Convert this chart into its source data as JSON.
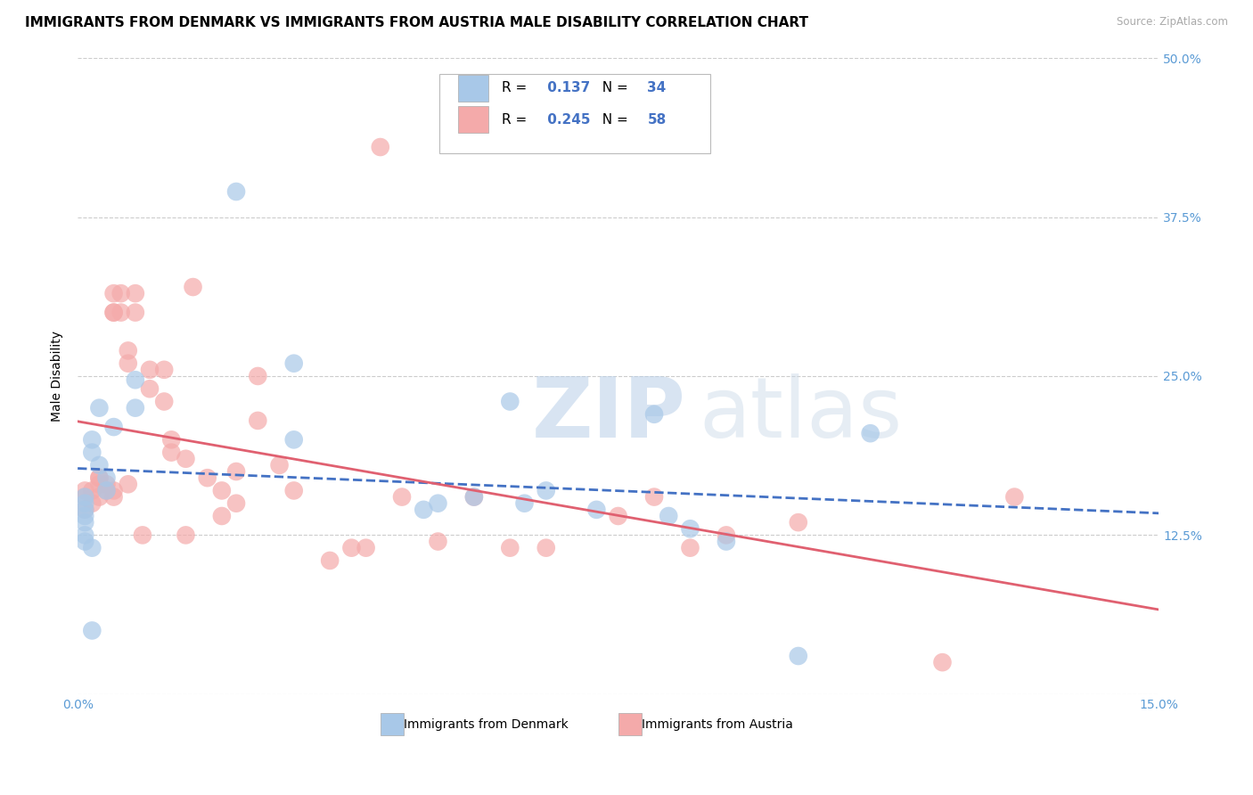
{
  "title": "IMMIGRANTS FROM DENMARK VS IMMIGRANTS FROM AUSTRIA MALE DISABILITY CORRELATION CHART",
  "source": "Source: ZipAtlas.com",
  "ylabel_label": "Male Disability",
  "x_min": 0.0,
  "x_max": 0.15,
  "y_min": 0.0,
  "y_max": 0.5,
  "x_tick_positions": [
    0.0,
    0.05,
    0.1,
    0.15
  ],
  "x_tick_labels": [
    "0.0%",
    "",
    "",
    "15.0%"
  ],
  "y_tick_positions": [
    0.0,
    0.125,
    0.25,
    0.375,
    0.5
  ],
  "y_tick_labels": [
    "",
    "12.5%",
    "25.0%",
    "37.5%",
    "50.0%"
  ],
  "denmark_color": "#a8c8e8",
  "austria_color": "#f4aaaa",
  "denmark_line_color": "#4472c4",
  "austria_line_color": "#e06070",
  "denmark_R": 0.137,
  "denmark_N": 34,
  "austria_R": 0.245,
  "austria_N": 58,
  "denmark_scatter_x": [
    0.022,
    0.008,
    0.008,
    0.003,
    0.005,
    0.002,
    0.002,
    0.003,
    0.004,
    0.004,
    0.001,
    0.001,
    0.001,
    0.001,
    0.001,
    0.001,
    0.001,
    0.002,
    0.06,
    0.03,
    0.055,
    0.065,
    0.048,
    0.03,
    0.08,
    0.072,
    0.082,
    0.085,
    0.09,
    0.062,
    0.05,
    0.1,
    0.11,
    0.002
  ],
  "denmark_scatter_y": [
    0.395,
    0.247,
    0.225,
    0.225,
    0.21,
    0.2,
    0.19,
    0.18,
    0.17,
    0.16,
    0.155,
    0.15,
    0.145,
    0.14,
    0.135,
    0.125,
    0.12,
    0.115,
    0.23,
    0.26,
    0.155,
    0.16,
    0.145,
    0.2,
    0.22,
    0.145,
    0.14,
    0.13,
    0.12,
    0.15,
    0.15,
    0.03,
    0.205,
    0.05
  ],
  "austria_scatter_x": [
    0.001,
    0.001,
    0.001,
    0.002,
    0.002,
    0.003,
    0.003,
    0.003,
    0.003,
    0.004,
    0.004,
    0.005,
    0.005,
    0.005,
    0.005,
    0.005,
    0.006,
    0.006,
    0.007,
    0.007,
    0.007,
    0.008,
    0.008,
    0.009,
    0.01,
    0.01,
    0.012,
    0.012,
    0.013,
    0.013,
    0.015,
    0.015,
    0.016,
    0.018,
    0.02,
    0.02,
    0.022,
    0.022,
    0.025,
    0.025,
    0.028,
    0.03,
    0.035,
    0.038,
    0.04,
    0.042,
    0.045,
    0.05,
    0.055,
    0.06,
    0.065,
    0.075,
    0.08,
    0.085,
    0.09,
    0.1,
    0.12,
    0.13
  ],
  "austria_scatter_y": [
    0.155,
    0.145,
    0.16,
    0.16,
    0.15,
    0.17,
    0.165,
    0.155,
    0.17,
    0.165,
    0.16,
    0.3,
    0.315,
    0.3,
    0.16,
    0.155,
    0.315,
    0.3,
    0.26,
    0.27,
    0.165,
    0.315,
    0.3,
    0.125,
    0.24,
    0.255,
    0.255,
    0.23,
    0.2,
    0.19,
    0.185,
    0.125,
    0.32,
    0.17,
    0.14,
    0.16,
    0.175,
    0.15,
    0.25,
    0.215,
    0.18,
    0.16,
    0.105,
    0.115,
    0.115,
    0.43,
    0.155,
    0.12,
    0.155,
    0.115,
    0.115,
    0.14,
    0.155,
    0.115,
    0.125,
    0.135,
    0.025,
    0.155
  ],
  "watermark_zip": "ZIP",
  "watermark_atlas": "atlas",
  "background_color": "#ffffff",
  "grid_color": "#cccccc",
  "tick_color": "#5b9bd5",
  "title_fontsize": 11,
  "axis_label_fontsize": 10,
  "tick_label_fontsize": 10,
  "legend_r_n_color": "#4472c4",
  "legend_n_color": "#c0504d"
}
